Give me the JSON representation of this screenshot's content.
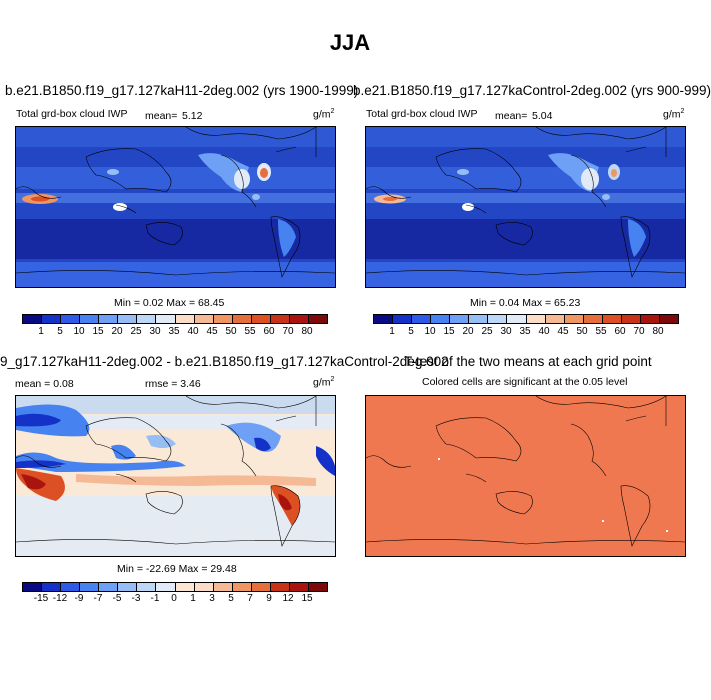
{
  "figure": {
    "title": "JJA"
  },
  "panels": {
    "p1": {
      "title": "b.e21.B1850.f19_g17.127kaH11-2deg.002 (yrs 1900-1999)",
      "var_label": "Total grd-box cloud IWP",
      "mean_label": "mean=",
      "mean_value": "5.12",
      "units": "g/m",
      "units_sup": "2",
      "minmax": "Min =  0.02 Max =  68.45"
    },
    "p2": {
      "title": "b.e21.B1850.f19_g17.127kaControl-2deg.002 (yrs 900-999)",
      "var_label": "Total grd-box cloud IWP",
      "mean_label": "mean=",
      "mean_value": "5.04",
      "units": "g/m",
      "units_sup": "2",
      "minmax": "Min =  0.04 Max =  65.23"
    },
    "p3": {
      "title": "9_g17.127kaH11-2deg.002 - b.e21.B1850.f19_g17.127kaControl-2deg.002",
      "mean_text": "mean =  0.08",
      "rmse_text": "rmse =  3.46",
      "units": "g/m",
      "units_sup": "2",
      "minmax": "Min = -22.69 Max =  29.48"
    },
    "p4": {
      "title": "T-test of the two means at each grid point",
      "subtitle": "Colored cells are significant at the 0.05 level"
    }
  },
  "colorbar_abs": {
    "labels": [
      "1",
      "5",
      "10",
      "15",
      "20",
      "25",
      "30",
      "35",
      "40",
      "45",
      "50",
      "55",
      "60",
      "70",
      "80"
    ],
    "colors": [
      "#0a0a82",
      "#1432c8",
      "#2d5ae6",
      "#4682f0",
      "#6ea0f5",
      "#96bef5",
      "#bed7f5",
      "#e1ebf8",
      "#fadcc8",
      "#f5b996",
      "#f09664",
      "#e66e3c",
      "#dc5023",
      "#c83219",
      "#aa140f",
      "#7d0a0a"
    ]
  },
  "colorbar_diff": {
    "labels": [
      "-15",
      "-12",
      "-9",
      "-7",
      "-5",
      "-3",
      "-1",
      "0",
      "1",
      "3",
      "5",
      "7",
      "9",
      "12",
      "15"
    ],
    "colors": [
      "#0a0a82",
      "#1432c8",
      "#2d5ae6",
      "#4682f0",
      "#6ea0f5",
      "#96bef5",
      "#bed7f5",
      "#e1ebf8",
      "#fae6d2",
      "#fadcc8",
      "#f5b996",
      "#f09664",
      "#e66e3c",
      "#c83219",
      "#aa140f",
      "#7d0a0a"
    ]
  },
  "colors": {
    "ttest_fill": "#f07850",
    "map_base": "#1e46c8",
    "diff_base": "#fbe9d7"
  }
}
